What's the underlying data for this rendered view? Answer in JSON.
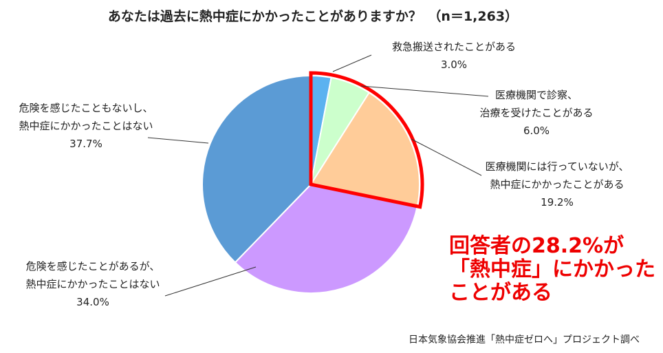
{
  "chart_data": {
    "type": "pie",
    "title": "あなたは過去に熱中症にかかったことがありますか？　（n＝1,263）",
    "slices": [
      {
        "label_lines": [
          "救急搬送されたことがある"
        ],
        "value": 3.0,
        "value_label": "3.0%",
        "color": "#5cb2f0"
      },
      {
        "label_lines": [
          "医療機関で診察、",
          "治療を受けたことがある"
        ],
        "value": 6.0,
        "value_label": "6.0%",
        "color": "#ccffcc"
      },
      {
        "label_lines": [
          "医療機関には行っていないが、",
          "熱中症にかかったことがある"
        ],
        "value": 19.2,
        "value_label": "19.2%",
        "color": "#ffcc99"
      },
      {
        "label_lines": [
          "危険を感じたことがあるが、",
          "熱中症にかかったことはない"
        ],
        "value": 34.0,
        "value_label": "34.0%",
        "color": "#cc99ff"
      },
      {
        "label_lines": [
          "危険を感じたこともないし、",
          "熱中症にかかったことはない"
        ],
        "value": 37.7,
        "value_label": "37.7%",
        "color": "#5b9bd5"
      }
    ],
    "highlight_color": "#ff0000",
    "callout_lines": [
      "回答者の28.2%が",
      "「熱中症」にかかった",
      "ことがある"
    ],
    "source": "日本気象協会推進「熱中症ゼロへ」プロジェクト調べ"
  }
}
